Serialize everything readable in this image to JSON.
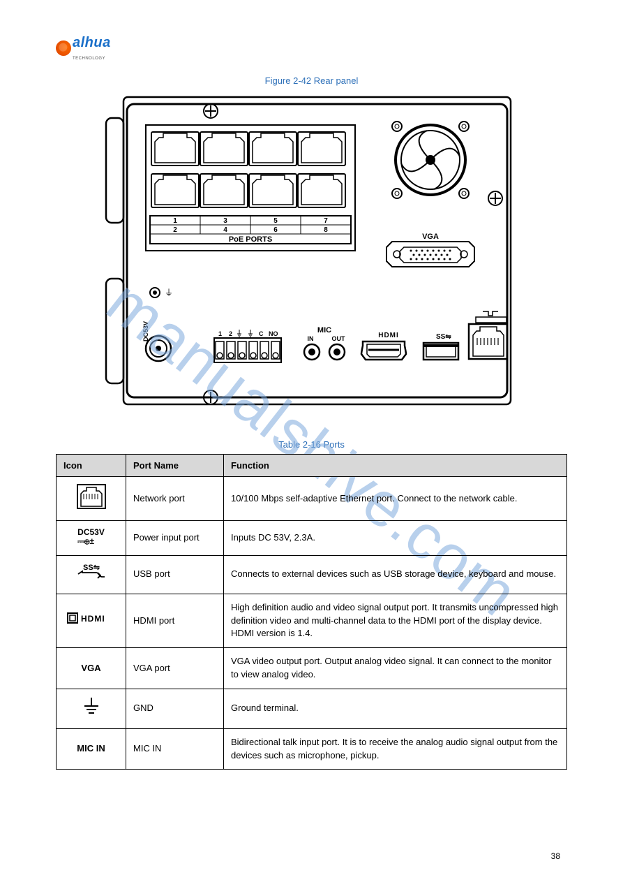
{
  "brand": {
    "name": "alhua",
    "tagline": "TECHNOLOGY"
  },
  "figure_caption": "Figure 2-42 Rear panel",
  "table_caption": "Table 2-16 Ports",
  "page_number": "38",
  "panel": {
    "poe_numbers_top": [
      "1",
      "3",
      "5",
      "7"
    ],
    "poe_numbers_bottom": [
      "2",
      "4",
      "6",
      "8"
    ],
    "poe_label": "PoE PORTS",
    "vga_label": "VGA",
    "mic_label": "MIC",
    "mic_in": "IN",
    "mic_out": "OUT",
    "hdmi_label": "HDMI",
    "usb_label": "SS",
    "alarm_terms": [
      "1",
      "2",
      "",
      "",
      "C",
      "NO"
    ],
    "power_label": "DC53V"
  },
  "columns": [
    "Icon",
    "Port Name",
    "Function"
  ],
  "rows": [
    {
      "icon_type": "network",
      "name": "Network port",
      "func": "10/100 Mbps self-adaptive Ethernet port. Connect to the network cable."
    },
    {
      "icon_type": "dc53v",
      "name": "Power input port",
      "func": "Inputs DC 53V, 2.3A."
    },
    {
      "icon_type": "usb",
      "name": "USB port",
      "func": "Connects to external devices such as USB storage device, keyboard and mouse."
    },
    {
      "icon_type": "hdmi",
      "name": "HDMI port",
      "func": "High definition audio and video signal output port. It transmits uncompressed high definition video and multi-channel data to the HDMI port of the display device. HDMI version is 1.4."
    },
    {
      "icon_type": "vga",
      "name": "VGA port",
      "func": "VGA video output port. Output analog video signal. It can connect to the monitor to view analog video."
    },
    {
      "icon_type": "gnd",
      "name": "GND",
      "func": "Ground terminal."
    },
    {
      "icon_type": "mic_in",
      "name": "MIC IN",
      "func": "Bidirectional talk input port. It is to receive the analog audio signal output from the devices such as microphone, pickup."
    }
  ],
  "watermark_text": "manualshive.com",
  "colors": {
    "page_bg": "#ffffff",
    "text": "#000000",
    "caption": "#2c6fb8",
    "header_bg": "#d8d8d8",
    "watermark": "#7faadd",
    "logo_swirl_a": "#ff6a00",
    "logo_swirl_b": "#d94100",
    "logo_text": "#1a6fc9"
  }
}
